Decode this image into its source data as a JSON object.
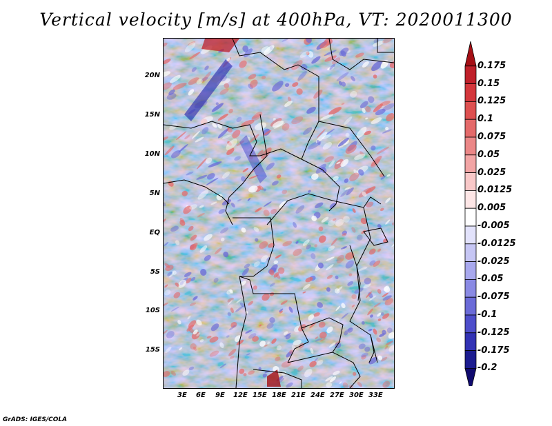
{
  "title": "Vertical velocity [m/s] at 400hPa, VT: 2020011300",
  "credit": "GrADS: IGES/COLA",
  "latitude_labels": [
    "20N",
    "15N",
    "10N",
    "5N",
    "EQ",
    "5S",
    "10S",
    "15S"
  ],
  "longitude_labels": [
    "3E",
    "6E",
    "9E",
    "12E",
    "15E",
    "18E",
    "21E",
    "24E",
    "27E",
    "30E",
    "33E"
  ],
  "colorbar": {
    "labels": [
      "0.175",
      "0.15",
      "0.125",
      "0.1",
      "0.075",
      "0.05",
      "0.025",
      "0.0125",
      "0.005",
      "-0.005",
      "-0.0125",
      "-0.025",
      "-0.05",
      "-0.075",
      "-0.1",
      "-0.125",
      "-0.175",
      "-0.2"
    ],
    "colors": [
      "#a50f15",
      "#c0202a",
      "#d4373c",
      "#de5050",
      "#e46a6a",
      "#eb8787",
      "#f2a5a5",
      "#f8c8c8",
      "#fde6e6",
      "#ffffff",
      "#e2e2fb",
      "#c6c6f4",
      "#a9a9ee",
      "#8a8ae4",
      "#6b6bd8",
      "#4e4ecb",
      "#3232b4",
      "#1c1c90",
      "#100a6e"
    ]
  },
  "field_colors": {
    "positive": "#e46a6a",
    "negative": "#6b6bd8",
    "neutral": "#ffffff",
    "background": "#c8c8f2"
  }
}
